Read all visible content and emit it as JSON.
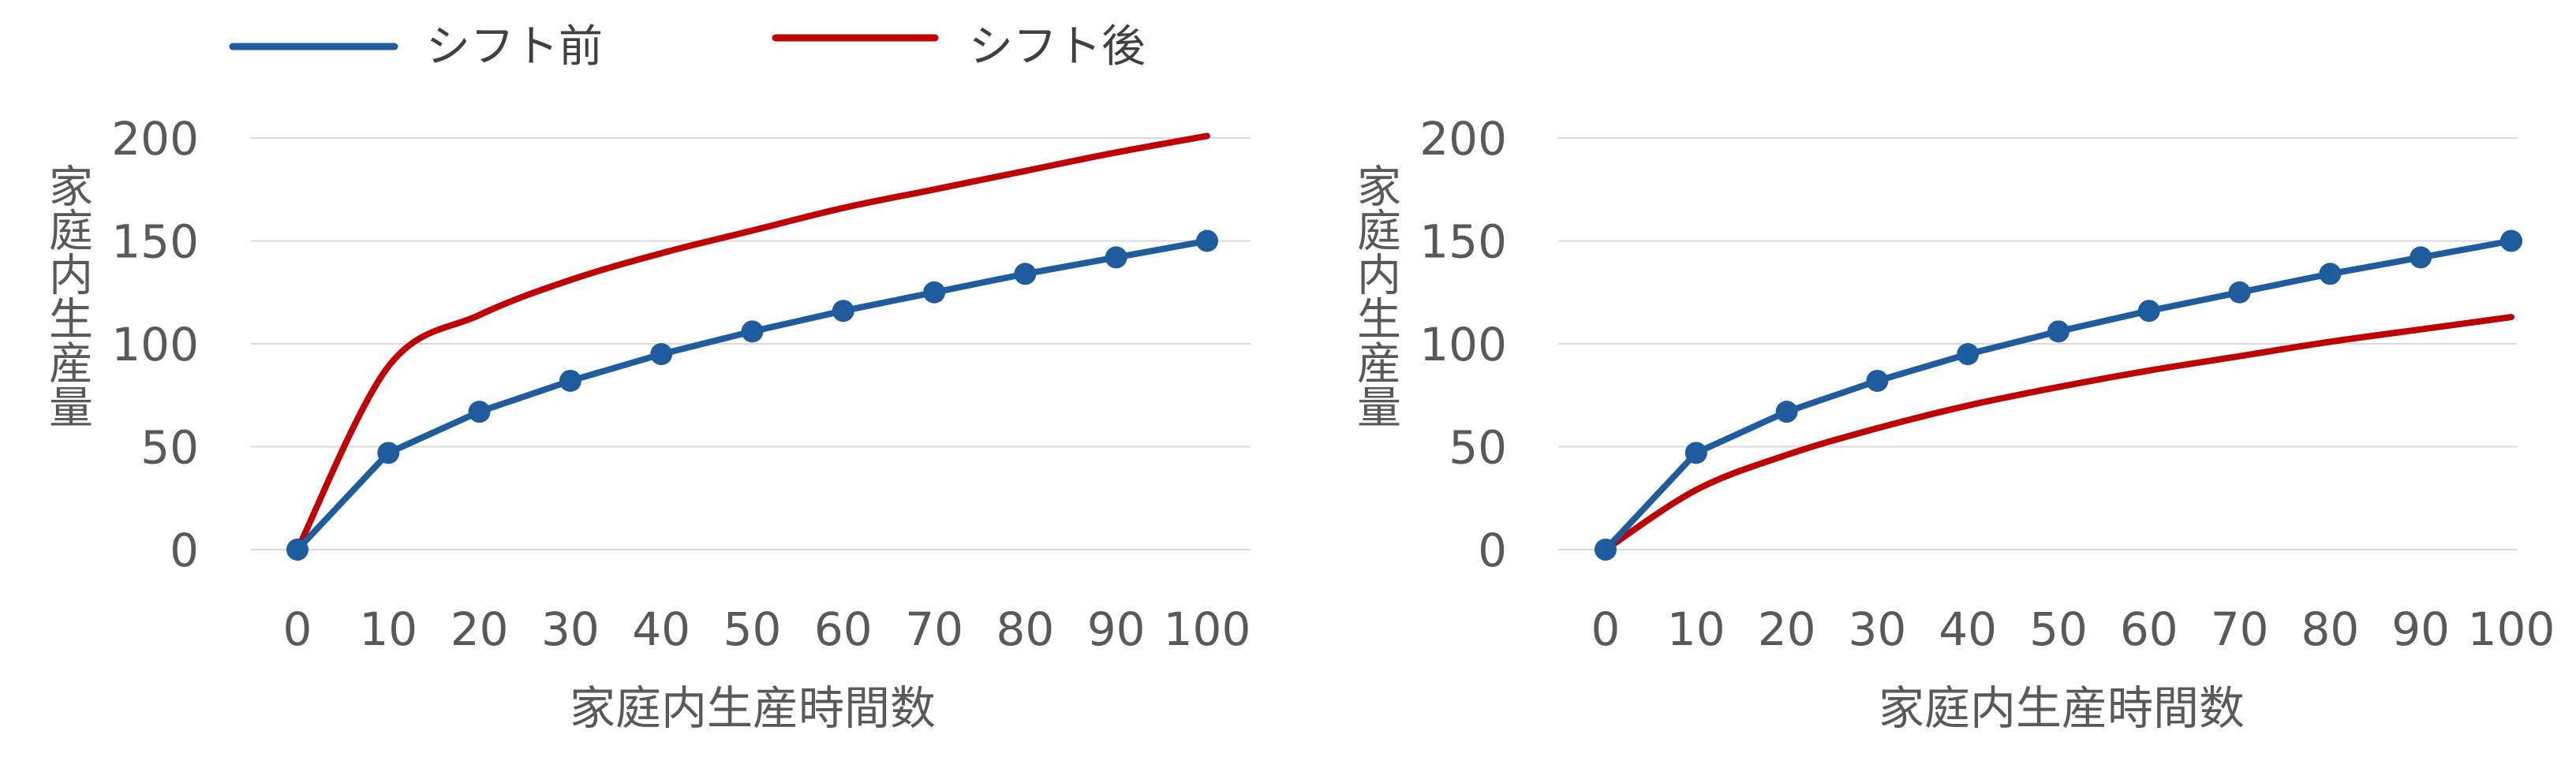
{
  "legend": {
    "items": [
      {
        "label": "シフト前",
        "color": "#1F5C9E"
      },
      {
        "label": "シフト後",
        "color": "#C00000"
      }
    ]
  },
  "chart_data": [
    {
      "type": "line",
      "xlabel": "家庭内生産時間数",
      "ylabel": "家庭内生産量",
      "x": [
        0,
        10,
        20,
        30,
        40,
        50,
        60,
        70,
        80,
        90,
        100
      ],
      "xlim": [
        0,
        100
      ],
      "ylim": [
        0,
        200
      ],
      "yticks": [
        0,
        50,
        100,
        150,
        200
      ],
      "grid": true,
      "series": [
        {
          "name": "シフト前",
          "color": "#1F5C9E",
          "markers": true,
          "values": [
            0,
            47,
            67,
            82,
            95,
            106,
            116,
            125,
            134,
            142,
            150
          ]
        },
        {
          "name": "シフト後",
          "color": "#C00000",
          "markers": false,
          "values": [
            0,
            89,
            114,
            131,
            144,
            155,
            166,
            175,
            184,
            193,
            201
          ]
        }
      ]
    },
    {
      "type": "line",
      "xlabel": "家庭内生産時間数",
      "ylabel": "家庭内生産量",
      "x": [
        0,
        10,
        20,
        30,
        40,
        50,
        60,
        70,
        80,
        90,
        100
      ],
      "xlim": [
        0,
        100
      ],
      "ylim": [
        0,
        200
      ],
      "yticks": [
        0,
        50,
        100,
        150,
        200
      ],
      "grid": true,
      "series": [
        {
          "name": "シフト前",
          "color": "#1F5C9E",
          "markers": true,
          "values": [
            0,
            47,
            67,
            82,
            95,
            106,
            116,
            125,
            134,
            142,
            150
          ]
        },
        {
          "name": "シフト後",
          "color": "#C00000",
          "markers": false,
          "values": [
            0,
            29,
            46,
            59,
            70,
            79,
            87,
            94,
            101,
            107,
            113
          ]
        }
      ]
    }
  ]
}
